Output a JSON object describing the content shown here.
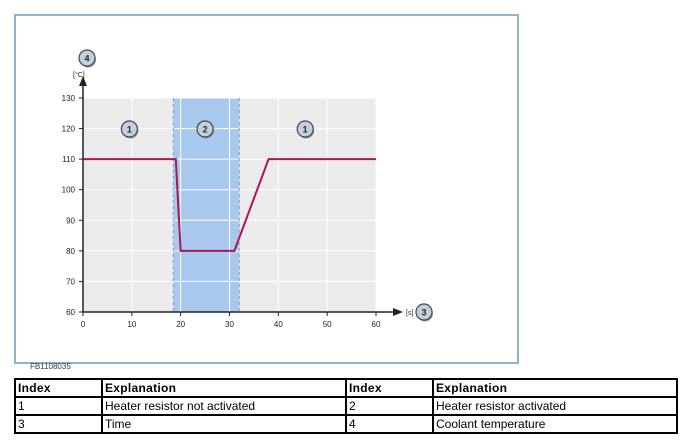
{
  "figure": {
    "code": "FB1108035",
    "y_unit": "[°C]",
    "x_unit": "[s]",
    "y_axis_callout": "4",
    "x_axis_callout": "3",
    "zone_callouts": [
      {
        "label": "1",
        "x_center": 9.5
      },
      {
        "label": "2",
        "x_center": 25
      },
      {
        "label": "1",
        "x_center": 45.5
      }
    ]
  },
  "chart_data": {
    "type": "line",
    "x": [
      0,
      19,
      20,
      31,
      38,
      60
    ],
    "y": [
      110,
      110,
      80,
      80,
      110,
      110
    ],
    "xticks": [
      0,
      10,
      20,
      30,
      40,
      50,
      60
    ],
    "yticks": [
      60,
      70,
      80,
      90,
      100,
      110,
      120,
      130
    ],
    "xlim": [
      0,
      60
    ],
    "ylim": [
      60,
      130
    ],
    "grid": true,
    "shaded_region": {
      "x_start": 18.5,
      "x_end": 32
    },
    "colors": {
      "line": "#a8175a",
      "plot_bg": "#ebebeb",
      "shade": "#a8c8ee",
      "grid": "#ffffff",
      "callout_fill": "#c7cfd6"
    }
  },
  "legend_table": {
    "headers": [
      "Index",
      "Explanation",
      "Index",
      "Explanation"
    ],
    "rows": [
      [
        "1",
        "Heater resistor not activated",
        "2",
        "Heater resistor activated"
      ],
      [
        "3",
        "Time",
        "4",
        "Coolant temperature"
      ]
    ]
  }
}
